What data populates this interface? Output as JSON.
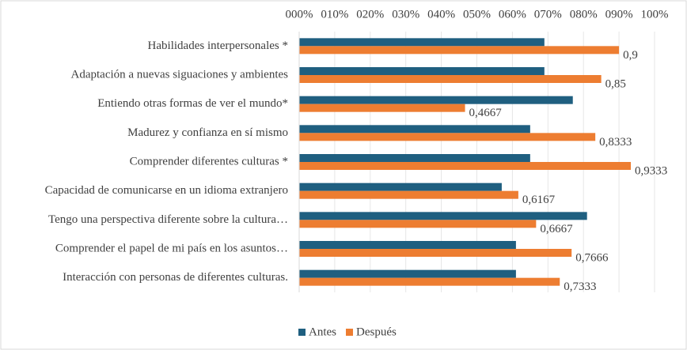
{
  "chart_data": {
    "type": "barh",
    "categories": [
      "Habilidades interpersonales *",
      "Adaptación a nuevas siguaciones y ambientes",
      "Entiendo otras formas de ver el mundo*",
      "Madurez y confianza en sí mismo",
      "Comprender diferentes culturas *",
      "Capacidad de comunicarse en un idioma extranjero",
      "Tengo una perspectiva diferente sobre la cultura…",
      "Comprender el papel de mi país en los asuntos…",
      "Interacción con personas de diferentes culturas."
    ],
    "series": [
      {
        "name": "Antes",
        "color": "#1f5f80",
        "values": [
          0.69,
          0.69,
          0.77,
          0.65,
          0.65,
          0.57,
          0.81,
          0.61,
          0.61
        ]
      },
      {
        "name": "Después",
        "color": "#ed7d31",
        "values": [
          0.9,
          0.85,
          0.4667,
          0.8333,
          0.9333,
          0.6167,
          0.6667,
          0.7666,
          0.7333
        ],
        "value_labels": [
          "0,9",
          "0,85",
          "0,4667",
          "0,8333",
          "0,9333",
          "0,6167",
          "0,6667",
          "0,7666",
          "0,7333"
        ]
      }
    ],
    "xlim": [
      0,
      1
    ],
    "xticks": [
      {
        "value": 0,
        "label": "000%"
      },
      {
        "value": 0.1,
        "label": "010%"
      },
      {
        "value": 0.2,
        "label": "020%"
      },
      {
        "value": 0.3,
        "label": "030%"
      },
      {
        "value": 0.4,
        "label": "040%"
      },
      {
        "value": 0.5,
        "label": "050%"
      },
      {
        "value": 0.6,
        "label": "060%"
      },
      {
        "value": 0.7,
        "label": "070%"
      },
      {
        "value": 0.8,
        "label": "080%"
      },
      {
        "value": 0.9,
        "label": "090%"
      },
      {
        "value": 1,
        "label": "100%"
      }
    ],
    "grid": true,
    "legend": "bottom"
  }
}
